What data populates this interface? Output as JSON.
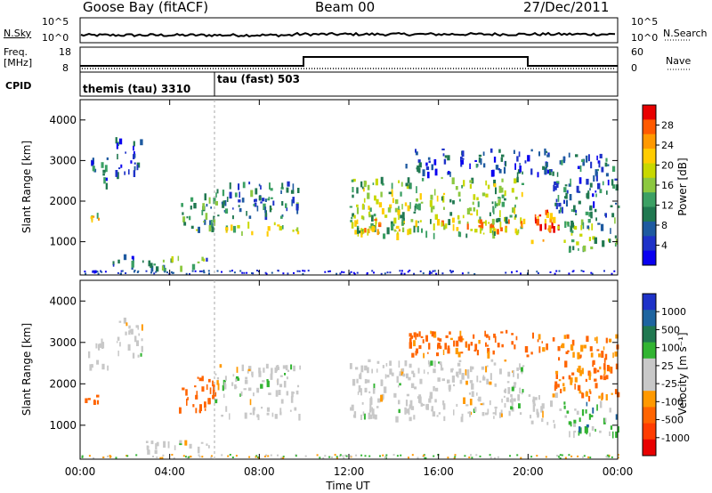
{
  "header": {
    "station": "Goose Bay (fitACF)",
    "beam": "Beam 00",
    "date": "27/Dec/2011"
  },
  "noise_panel": {
    "left_label": "N.Sky",
    "right_label": "N.Search",
    "left_ticks": [
      "10^5",
      "10^0"
    ],
    "right_ticks": [
      "10^5",
      "10^0"
    ]
  },
  "freq_panel": {
    "left_label_1": "Freq.",
    "left_label_2": "[MHz]",
    "left_ticks": [
      "18",
      "8"
    ],
    "right_label": "Nave",
    "right_ticks": [
      "60",
      "0"
    ]
  },
  "cpid": {
    "label": "CPID",
    "segments": [
      {
        "name": "themis (tau) 3310",
        "start_hour": 0,
        "end_hour": 6
      },
      {
        "name": "tau (fast) 503",
        "start_hour": 6,
        "end_hour": 24
      }
    ]
  },
  "power_panel": {
    "ylabel": "Slant Range [km]",
    "cbar_label": "Power [dB]",
    "cbar_ticks": [
      "28",
      "24",
      "20",
      "16",
      "12",
      "8",
      "4"
    ],
    "cbar_colors": [
      "#e80000",
      "#ff5a00",
      "#ff9900",
      "#ffcc00",
      "#c8d800",
      "#8cc840",
      "#3ca064",
      "#207850",
      "#1e5aa0",
      "#1e32c8",
      "#0a00f0"
    ]
  },
  "velocity_panel": {
    "ylabel": "Slant Range [km]",
    "cbar_label": "Velocity [m s⁻¹]",
    "cbar_ticks": [
      "1000",
      "500",
      "100",
      "25",
      "-25",
      "-100",
      "-500",
      "-1000"
    ],
    "cbar_colors": [
      "#1e32c8",
      "#1e64a0",
      "#207850",
      "#32b432",
      "#c8c8c8",
      "#c8c8c8",
      "#ff9900",
      "#ff6400",
      "#ff3c00",
      "#e80000"
    ]
  },
  "time_axis": {
    "label": "Time UT",
    "ticks": [
      "00:00",
      "04:00",
      "08:00",
      "12:00",
      "16:00",
      "20:00",
      "00:00"
    ]
  },
  "chart_data": [
    {
      "type": "heatmap",
      "title": "Power",
      "xlabel": "Time UT",
      "ylabel": "Slant Range [km]",
      "xlim": [
        0,
        24
      ],
      "ylim": [
        180,
        4500
      ],
      "yticks": [
        1000,
        2000,
        3000,
        4000
      ],
      "colorbar": "Power [dB]",
      "regions": [
        {
          "t0": 0.3,
          "t1": 1.2,
          "r0": 2400,
          "r1": 3100,
          "level": 8
        },
        {
          "t0": 0.2,
          "t1": 0.8,
          "r0": 1550,
          "r1": 1750,
          "level": 20
        },
        {
          "t0": 1.5,
          "t1": 2.8,
          "r0": 2700,
          "r1": 3600,
          "level": 6
        },
        {
          "t0": 1.3,
          "t1": 2.5,
          "r0": 400,
          "r1": 700,
          "level": 8
        },
        {
          "t0": 2.7,
          "t1": 5.8,
          "r0": 350,
          "r1": 650,
          "level": 12
        },
        {
          "t0": 4.4,
          "t1": 6.0,
          "r0": 1300,
          "r1": 2200,
          "level": 12
        },
        {
          "t0": 6.0,
          "t1": 9.8,
          "r0": 1600,
          "r1": 2500,
          "level": 10
        },
        {
          "t0": 6.2,
          "t1": 9.8,
          "r0": 1250,
          "r1": 1500,
          "level": 18
        },
        {
          "t0": 12.0,
          "t1": 19.8,
          "r0": 1200,
          "r1": 2600,
          "level": 16
        },
        {
          "t0": 12.5,
          "t1": 19.8,
          "r0": 1300,
          "r1": 1600,
          "level": 22
        },
        {
          "t0": 14.5,
          "t1": 21.0,
          "r0": 2700,
          "r1": 3300,
          "level": 6
        },
        {
          "t0": 20.0,
          "t1": 21.4,
          "r0": 1000,
          "r1": 1800,
          "level": 26
        },
        {
          "t0": 21.5,
          "t1": 24.0,
          "r0": 800,
          "r1": 1600,
          "level": 14
        },
        {
          "t0": 21.0,
          "t1": 24.0,
          "r0": 1700,
          "r1": 3200,
          "level": 8
        }
      ]
    },
    {
      "type": "heatmap",
      "title": "Velocity",
      "xlabel": "Time UT",
      "ylabel": "Slant Range [km]",
      "xlim": [
        0,
        24
      ],
      "ylim": [
        180,
        4500
      ],
      "yticks": [
        1000,
        2000,
        3000,
        4000
      ],
      "colorbar": "Velocity [m s⁻¹]",
      "regions": [
        {
          "t0": 0.3,
          "t1": 1.2,
          "r0": 2400,
          "r1": 3100,
          "velocity": 0
        },
        {
          "t0": 0.2,
          "t1": 0.8,
          "r0": 1550,
          "r1": 1750,
          "velocity": -300
        },
        {
          "t0": 1.5,
          "t1": 2.8,
          "r0": 2700,
          "r1": 3600,
          "velocity": 0
        },
        {
          "t0": 2.7,
          "t1": 5.8,
          "r0": 350,
          "r1": 650,
          "velocity": 0
        },
        {
          "t0": 4.4,
          "t1": 6.0,
          "r0": 1300,
          "r1": 2200,
          "velocity": -200
        },
        {
          "t0": 6.0,
          "t1": 9.8,
          "r0": 1600,
          "r1": 2500,
          "velocity": 0
        },
        {
          "t0": 6.2,
          "t1": 9.8,
          "r0": 1250,
          "r1": 1500,
          "velocity": 0
        },
        {
          "t0": 12.0,
          "t1": 19.8,
          "r0": 1200,
          "r1": 2600,
          "velocity": 0
        },
        {
          "t0": 14.5,
          "t1": 21.0,
          "r0": 2700,
          "r1": 3300,
          "velocity": -150
        },
        {
          "t0": 20.0,
          "t1": 21.4,
          "r0": 1000,
          "r1": 1800,
          "velocity": 0
        },
        {
          "t0": 21.5,
          "t1": 24.0,
          "r0": 800,
          "r1": 1600,
          "velocity": 50
        },
        {
          "t0": 21.0,
          "t1": 24.0,
          "r0": 1700,
          "r1": 3200,
          "velocity": -100
        }
      ]
    }
  ]
}
